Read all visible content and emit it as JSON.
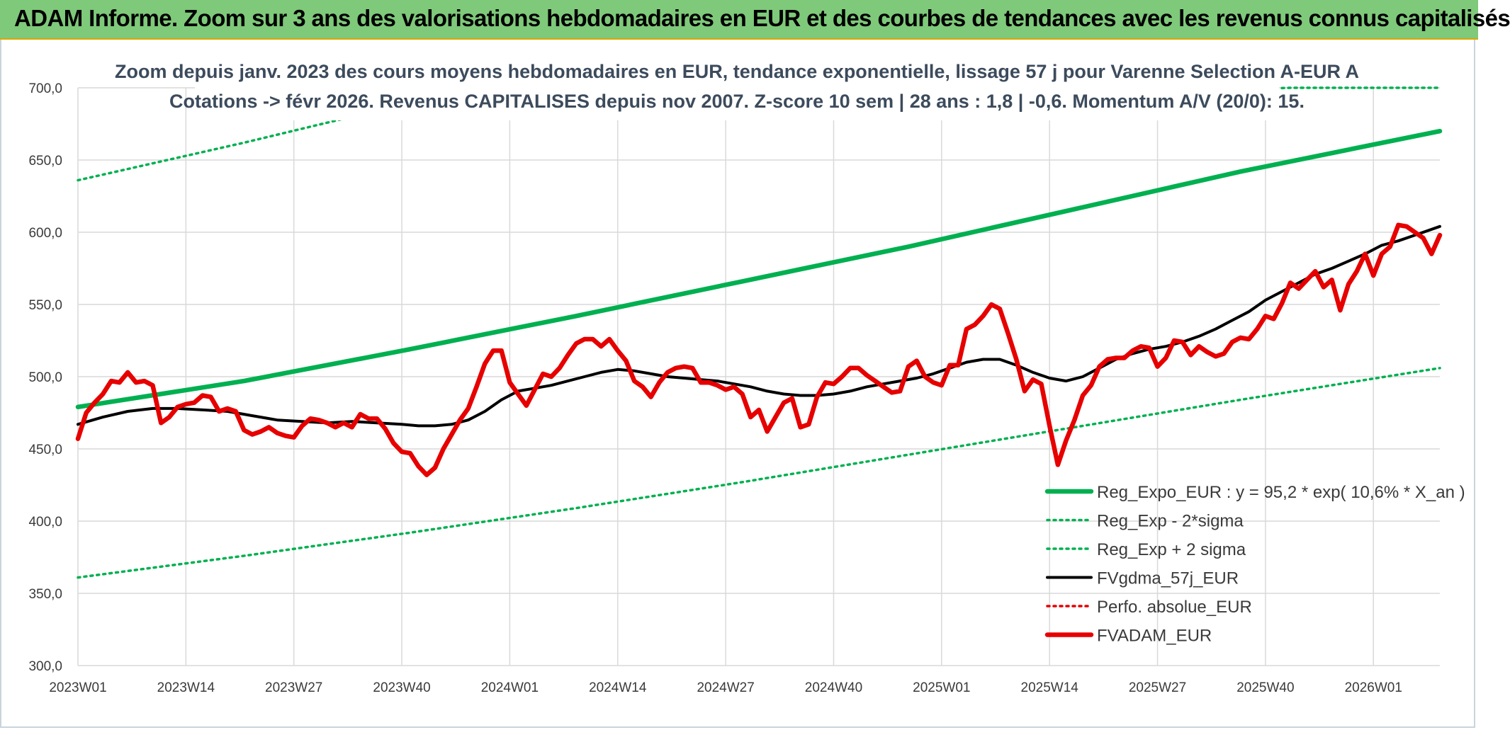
{
  "header": {
    "title": "ADAM Informe. Zoom sur 3 ans des valorisations hebdomadaires en EUR et des courbes de tendances avec les revenus connus capitalisés"
  },
  "colors": {
    "header_bg": "#7fc97a",
    "trend_green": "#00b050",
    "price_red": "#e60000",
    "average_black": "#000000",
    "grid": "#d9d9d9"
  },
  "chart_data": {
    "type": "line",
    "title_lines": [
      "Zoom depuis janv. 2023 des cours moyens hebdomadaires en EUR, tendance exponentielle, lissage 57 j pour Varenne Selection A-EUR A",
      "Cotations -> févr 2026. Revenus CAPITALISES depuis nov 2007. Z-score 10 sem | 28 ans : 1,8 | -0,6. Momentum A/V (20/0): 15."
    ],
    "ylim": [
      300,
      700
    ],
    "y_ticks": [
      300,
      350,
      400,
      450,
      500,
      550,
      600,
      650,
      700
    ],
    "y_tick_labels": [
      "300,0",
      "350,0",
      "400,0",
      "450,0",
      "500,0",
      "550,0",
      "600,0",
      "650,0",
      "700,0"
    ],
    "x_range_weeks": [
      0,
      164
    ],
    "x_ticks": [
      {
        "week": 0,
        "label": "2023W01"
      },
      {
        "week": 13,
        "label": "2023W14"
      },
      {
        "week": 26,
        "label": "2023W27"
      },
      {
        "week": 39,
        "label": "2023W40"
      },
      {
        "week": 52,
        "label": "2024W01"
      },
      {
        "week": 65,
        "label": "2024W14"
      },
      {
        "week": 78,
        "label": "2024W27"
      },
      {
        "week": 91,
        "label": "2024W40"
      },
      {
        "week": 104,
        "label": "2025W01"
      },
      {
        "week": 117,
        "label": "2025W14"
      },
      {
        "week": 130,
        "label": "2025W27"
      },
      {
        "week": 143,
        "label": "2025W40"
      },
      {
        "week": 156,
        "label": "2026W01"
      }
    ],
    "series": [
      {
        "name": "Reg_Expo_EUR : y = 95,2 * exp( 10,6% *  X_an )",
        "style": "solid-thick",
        "color": "#00b050",
        "points": [
          [
            0,
            479
          ],
          [
            20,
            497
          ],
          [
            40,
            519
          ],
          [
            60,
            542
          ],
          [
            80,
            566
          ],
          [
            100,
            590
          ],
          [
            120,
            616
          ],
          [
            140,
            642
          ],
          [
            164,
            670
          ]
        ]
      },
      {
        "name": "Reg_Exp - 2*sigma",
        "style": "dotted",
        "color": "#00b050",
        "points": [
          [
            0,
            361
          ],
          [
            20,
            376
          ],
          [
            40,
            392
          ],
          [
            60,
            409
          ],
          [
            80,
            427
          ],
          [
            100,
            446
          ],
          [
            120,
            465
          ],
          [
            140,
            484
          ],
          [
            164,
            506
          ]
        ]
      },
      {
        "name": "Reg_Exp + 2 sigma",
        "style": "dotted",
        "color": "#00b050",
        "points": [
          [
            0,
            636
          ],
          [
            20,
            662
          ],
          [
            33,
            680
          ],
          [
            146,
            700
          ],
          [
            164,
            700
          ]
        ]
      },
      {
        "name": "FVgdma_57j_EUR",
        "style": "solid",
        "color": "#000000",
        "points": [
          [
            0,
            467
          ],
          [
            3,
            472
          ],
          [
            6,
            476
          ],
          [
            9,
            478
          ],
          [
            12,
            478
          ],
          [
            15,
            477
          ],
          [
            18,
            476
          ],
          [
            21,
            473
          ],
          [
            24,
            470
          ],
          [
            27,
            469
          ],
          [
            30,
            468
          ],
          [
            33,
            469
          ],
          [
            36,
            468
          ],
          [
            39,
            467
          ],
          [
            41,
            466
          ],
          [
            43,
            466
          ],
          [
            45,
            467
          ],
          [
            47,
            470
          ],
          [
            49,
            476
          ],
          [
            51,
            484
          ],
          [
            53,
            490
          ],
          [
            55,
            492
          ],
          [
            57,
            494
          ],
          [
            59,
            497
          ],
          [
            61,
            500
          ],
          [
            63,
            503
          ],
          [
            65,
            505
          ],
          [
            67,
            504
          ],
          [
            69,
            502
          ],
          [
            71,
            500
          ],
          [
            73,
            499
          ],
          [
            75,
            498
          ],
          [
            77,
            497
          ],
          [
            79,
            495
          ],
          [
            81,
            493
          ],
          [
            83,
            490
          ],
          [
            85,
            488
          ],
          [
            87,
            487
          ],
          [
            89,
            487
          ],
          [
            91,
            488
          ],
          [
            93,
            490
          ],
          [
            95,
            493
          ],
          [
            97,
            495
          ],
          [
            99,
            497
          ],
          [
            101,
            499
          ],
          [
            103,
            502
          ],
          [
            105,
            506
          ],
          [
            107,
            510
          ],
          [
            109,
            512
          ],
          [
            111,
            512
          ],
          [
            113,
            508
          ],
          [
            115,
            503
          ],
          [
            117,
            499
          ],
          [
            119,
            497
          ],
          [
            121,
            500
          ],
          [
            123,
            506
          ],
          [
            125,
            512
          ],
          [
            127,
            516
          ],
          [
            129,
            519
          ],
          [
            131,
            521
          ],
          [
            133,
            524
          ],
          [
            135,
            528
          ],
          [
            137,
            533
          ],
          [
            139,
            539
          ],
          [
            141,
            545
          ],
          [
            143,
            553
          ],
          [
            145,
            559
          ],
          [
            147,
            565
          ],
          [
            149,
            571
          ],
          [
            151,
            575
          ],
          [
            153,
            580
          ],
          [
            155,
            585
          ],
          [
            157,
            591
          ],
          [
            159,
            594
          ],
          [
            161,
            598
          ],
          [
            164,
            604
          ]
        ]
      },
      {
        "name": "Perfo. absolue_EUR",
        "style": "dotted",
        "color": "#e60000",
        "points": []
      },
      {
        "name": "FVADAM_EUR",
        "style": "solid-thick",
        "color": "#e60000",
        "points": [
          [
            0,
            457
          ],
          [
            1,
            475
          ],
          [
            2,
            482
          ],
          [
            3,
            488
          ],
          [
            4,
            497
          ],
          [
            5,
            496
          ],
          [
            6,
            503
          ],
          [
            7,
            496
          ],
          [
            8,
            497
          ],
          [
            9,
            494
          ],
          [
            10,
            468
          ],
          [
            11,
            472
          ],
          [
            12,
            479
          ],
          [
            13,
            481
          ],
          [
            14,
            482
          ],
          [
            15,
            487
          ],
          [
            16,
            486
          ],
          [
            17,
            476
          ],
          [
            18,
            478
          ],
          [
            19,
            476
          ],
          [
            20,
            463
          ],
          [
            21,
            460
          ],
          [
            22,
            462
          ],
          [
            23,
            465
          ],
          [
            24,
            461
          ],
          [
            25,
            459
          ],
          [
            26,
            458
          ],
          [
            27,
            466
          ],
          [
            28,
            471
          ],
          [
            29,
            470
          ],
          [
            30,
            468
          ],
          [
            31,
            465
          ],
          [
            32,
            468
          ],
          [
            33,
            465
          ],
          [
            34,
            474
          ],
          [
            35,
            471
          ],
          [
            36,
            471
          ],
          [
            37,
            464
          ],
          [
            38,
            454
          ],
          [
            39,
            448
          ],
          [
            40,
            447
          ],
          [
            41,
            438
          ],
          [
            42,
            432
          ],
          [
            43,
            437
          ],
          [
            44,
            450
          ],
          [
            45,
            460
          ],
          [
            46,
            470
          ],
          [
            47,
            478
          ],
          [
            48,
            493
          ],
          [
            49,
            509
          ],
          [
            50,
            518
          ],
          [
            51,
            518
          ],
          [
            52,
            496
          ],
          [
            53,
            488
          ],
          [
            54,
            480
          ],
          [
            55,
            491
          ],
          [
            56,
            502
          ],
          [
            57,
            500
          ],
          [
            58,
            506
          ],
          [
            59,
            515
          ],
          [
            60,
            523
          ],
          [
            61,
            526
          ],
          [
            62,
            526
          ],
          [
            63,
            521
          ],
          [
            64,
            526
          ],
          [
            65,
            518
          ],
          [
            66,
            511
          ],
          [
            67,
            497
          ],
          [
            68,
            493
          ],
          [
            69,
            486
          ],
          [
            70,
            496
          ],
          [
            71,
            503
          ],
          [
            72,
            506
          ],
          [
            73,
            507
          ],
          [
            74,
            506
          ],
          [
            75,
            496
          ],
          [
            76,
            496
          ],
          [
            77,
            494
          ],
          [
            78,
            491
          ],
          [
            79,
            493
          ],
          [
            80,
            488
          ],
          [
            81,
            472
          ],
          [
            82,
            477
          ],
          [
            83,
            462
          ],
          [
            84,
            472
          ],
          [
            85,
            482
          ],
          [
            86,
            485
          ],
          [
            87,
            465
          ],
          [
            88,
            467
          ],
          [
            89,
            486
          ],
          [
            90,
            496
          ],
          [
            91,
            495
          ],
          [
            92,
            500
          ],
          [
            93,
            506
          ],
          [
            94,
            506
          ],
          [
            95,
            501
          ],
          [
            96,
            497
          ],
          [
            97,
            493
          ],
          [
            98,
            489
          ],
          [
            99,
            490
          ],
          [
            100,
            507
          ],
          [
            101,
            511
          ],
          [
            102,
            500
          ],
          [
            103,
            496
          ],
          [
            104,
            494
          ],
          [
            105,
            508
          ],
          [
            106,
            508
          ],
          [
            107,
            533
          ],
          [
            108,
            536
          ],
          [
            109,
            542
          ],
          [
            110,
            550
          ],
          [
            111,
            547
          ],
          [
            112,
            530
          ],
          [
            113,
            512
          ],
          [
            114,
            490
          ],
          [
            115,
            498
          ],
          [
            116,
            495
          ],
          [
            117,
            466
          ],
          [
            118,
            439
          ],
          [
            119,
            456
          ],
          [
            120,
            470
          ],
          [
            121,
            487
          ],
          [
            122,
            494
          ],
          [
            123,
            507
          ],
          [
            124,
            512
          ],
          [
            125,
            513
          ],
          [
            126,
            513
          ],
          [
            127,
            518
          ],
          [
            128,
            521
          ],
          [
            129,
            520
          ],
          [
            130,
            507
          ],
          [
            131,
            513
          ],
          [
            132,
            525
          ],
          [
            133,
            524
          ],
          [
            134,
            515
          ],
          [
            135,
            521
          ],
          [
            136,
            517
          ],
          [
            137,
            514
          ],
          [
            138,
            516
          ],
          [
            139,
            524
          ],
          [
            140,
            527
          ],
          [
            141,
            526
          ],
          [
            142,
            533
          ],
          [
            143,
            542
          ],
          [
            144,
            540
          ],
          [
            145,
            551
          ],
          [
            146,
            565
          ],
          [
            147,
            561
          ],
          [
            148,
            567
          ],
          [
            149,
            573
          ],
          [
            150,
            562
          ],
          [
            151,
            567
          ],
          [
            152,
            546
          ],
          [
            153,
            564
          ],
          [
            154,
            573
          ],
          [
            155,
            585
          ],
          [
            156,
            570
          ],
          [
            157,
            585
          ],
          [
            158,
            590
          ],
          [
            159,
            605
          ],
          [
            160,
            604
          ],
          [
            161,
            600
          ],
          [
            162,
            596
          ],
          [
            163,
            585
          ],
          [
            164,
            598
          ]
        ]
      }
    ],
    "legend_position": "right-bottom"
  }
}
